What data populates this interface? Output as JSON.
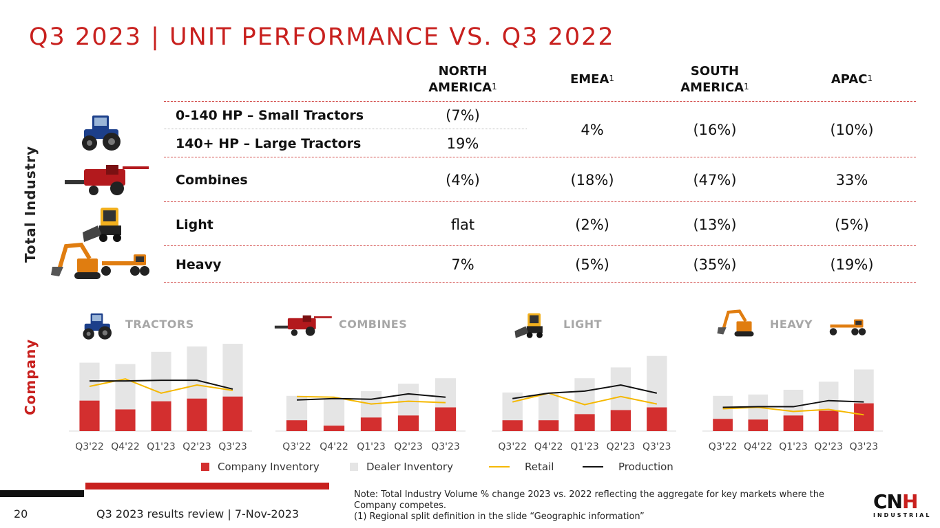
{
  "title": "Q3 2023 | UNIT PERFORMANCE VS. Q3 2022",
  "side_labels": {
    "total_industry": "Total Industry",
    "company": "Company"
  },
  "table": {
    "columns": [
      {
        "line1": "NORTH",
        "line2": "AMERICA",
        "sup": "1"
      },
      {
        "line1": "EMEA",
        "line2": "",
        "sup": "1"
      },
      {
        "line1": "SOUTH",
        "line2": "AMERICA",
        "sup": "1"
      },
      {
        "line1": "APAC",
        "line2": "",
        "sup": "1"
      }
    ],
    "rows": {
      "small_tractors": {
        "label": "0-140 HP – Small Tractors",
        "na": "(7%)"
      },
      "large_tractors": {
        "label": "140+ HP – Large Tractors",
        "na": "19%"
      },
      "tractors_shared": {
        "emea": "4%",
        "sa": "(16%)",
        "apac": "(10%)"
      },
      "combines": {
        "label": "Combines",
        "na": "(4%)",
        "emea": "(18%)",
        "sa": "(47%)",
        "apac": "33%"
      },
      "light": {
        "label": "Light",
        "na": "flat",
        "emea": "(2%)",
        "sa": "(13%)",
        "apac": "(5%)"
      },
      "heavy": {
        "label": "Heavy",
        "na": "7%",
        "emea": "(5%)",
        "sa": "(35%)",
        "apac": "(19%)"
      }
    }
  },
  "chart_sections": {
    "tractors": "TRACTORS",
    "combines": "COMBINES",
    "light": "LIGHT",
    "heavy": "HEAVY"
  },
  "legend": {
    "company_inventory": "Company Inventory",
    "dealer_inventory": "Dealer Inventory",
    "retail": "Retail",
    "production": "Production"
  },
  "colors": {
    "accent": "#c8201e",
    "company_inventory": "#d32f2f",
    "dealer_inventory": "#e5e5e5",
    "retail": "#f5b800",
    "production": "#111111"
  },
  "chart_data": [
    {
      "type": "bar",
      "title": "TRACTORS",
      "categories": [
        "Q3'22",
        "Q4'22",
        "Q1'23",
        "Q2'23",
        "Q3'23"
      ],
      "ylim": [
        0,
        130
      ],
      "series": [
        {
          "name": "Company Inventory",
          "values": [
            45,
            32,
            44,
            48,
            51
          ]
        },
        {
          "name": "Dealer Inventory",
          "values": [
            101,
            99,
            117,
            125,
            129
          ]
        },
        {
          "name": "Retail",
          "values": [
            66,
            77,
            56,
            68,
            60
          ]
        },
        {
          "name": "Production",
          "values": [
            74,
            74,
            75,
            75,
            62
          ]
        }
      ]
    },
    {
      "type": "bar",
      "title": "COMBINES",
      "categories": [
        "Q3'22",
        "Q4'22",
        "Q1'23",
        "Q2'23",
        "Q3'23"
      ],
      "ylim": [
        0,
        130
      ],
      "series": [
        {
          "name": "Company Inventory",
          "values": [
            16,
            8,
            20,
            23,
            35
          ]
        },
        {
          "name": "Dealer Inventory",
          "values": [
            52,
            48,
            59,
            70,
            78
          ]
        },
        {
          "name": "Retail",
          "values": [
            51,
            50,
            40,
            44,
            42
          ]
        },
        {
          "name": "Production",
          "values": [
            46,
            48,
            47,
            55,
            50
          ]
        }
      ]
    },
    {
      "type": "bar",
      "title": "LIGHT",
      "categories": [
        "Q3'22",
        "Q4'22",
        "Q1'23",
        "Q2'23",
        "Q3'23"
      ],
      "ylim": [
        0,
        130
      ],
      "series": [
        {
          "name": "Company Inventory",
          "values": [
            16,
            16,
            25,
            31,
            35
          ]
        },
        {
          "name": "Dealer Inventory",
          "values": [
            57,
            57,
            78,
            94,
            111
          ]
        },
        {
          "name": "Retail",
          "values": [
            43,
            56,
            39,
            51,
            40
          ]
        },
        {
          "name": "Production",
          "values": [
            48,
            56,
            59,
            68,
            56
          ]
        }
      ]
    },
    {
      "type": "bar",
      "title": "HEAVY",
      "categories": [
        "Q3'22",
        "Q4'22",
        "Q1'23",
        "Q2'23",
        "Q3'23"
      ],
      "ylim": [
        0,
        130
      ],
      "series": [
        {
          "name": "Company Inventory",
          "values": [
            18,
            17,
            23,
            30,
            41
          ]
        },
        {
          "name": "Dealer Inventory",
          "values": [
            52,
            54,
            61,
            73,
            91
          ]
        },
        {
          "name": "Retail",
          "values": [
            33,
            35,
            29,
            32,
            24
          ]
        },
        {
          "name": "Production",
          "values": [
            35,
            36,
            36,
            45,
            43
          ]
        }
      ]
    }
  ],
  "footer": {
    "page_number": "20",
    "presentation": "Q3 2023 results review | 7-Nov-2023",
    "note_line1": "Note: Total Industry Volume % change 2023 vs. 2022 reflecting the aggregate for key markets where the Company competes.",
    "note_line2": "(1) Regional split definition in the slide “Geographic information”"
  },
  "logo": {
    "mark_left": "CN",
    "mark_right": "H",
    "sub": "INDUSTRIAL"
  },
  "icons": [
    "tractor-icon",
    "combine-icon",
    "skid-steer-icon",
    "excavator-icon",
    "grader-icon"
  ]
}
